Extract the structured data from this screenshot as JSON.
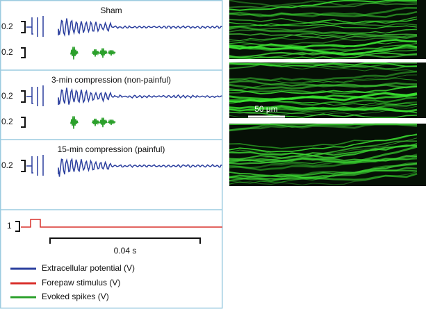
{
  "panels": [
    {
      "title": "Sham",
      "scale_labels": [
        "0.2",
        "0.2"
      ]
    },
    {
      "title": "3-min compression (non-painful)",
      "scale_labels": [
        "0.2",
        "0.2"
      ]
    },
    {
      "title": "15-min compression (painful)",
      "scale_labels": [
        "0.2"
      ]
    }
  ],
  "stimulus_scale_label": "1",
  "time_scale_label": "0.04 s",
  "legend": [
    "Extracellular potential (V)",
    "Forepaw stimulus (V)",
    "Evoked spikes (V)"
  ],
  "image_scale_label": "50 μm"
}
